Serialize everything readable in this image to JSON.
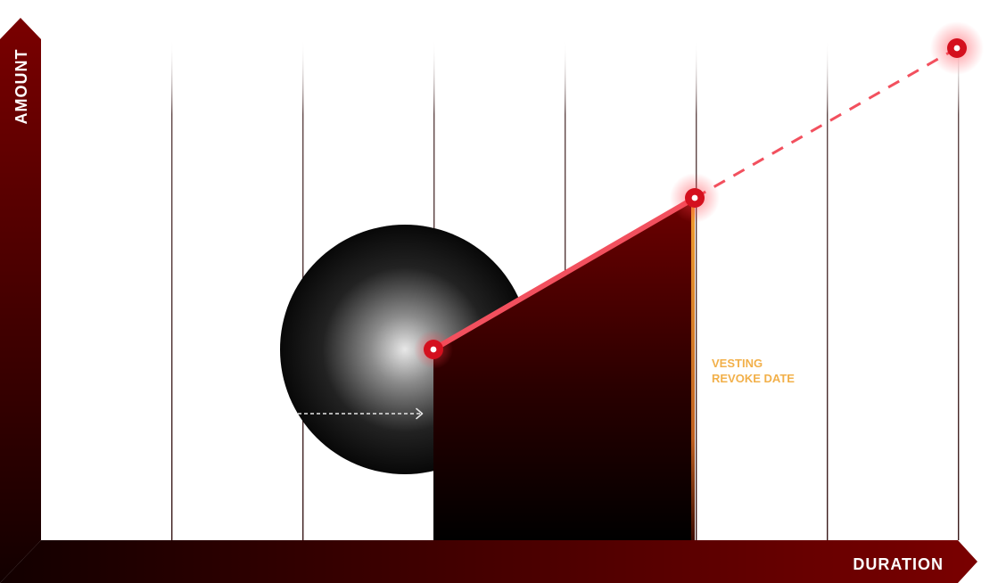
{
  "diagram": {
    "y_axis_label": "AMOUNT",
    "x_axis_label": "DURATION",
    "revoke_label_line1": "VESTING",
    "revoke_label_line2": "REVOKE DATE"
  },
  "colors": {
    "axis_dark": "#2a0000",
    "axis_red": "#7a0000",
    "vested_line": "#f2505e",
    "projection_line": "#f2505e",
    "point_fill": "#d4101e",
    "revoke_line": "#f0a030",
    "revoke_text": "#f2b04a",
    "grid_line": "#3a1a1a"
  },
  "icons": {
    "axis_arrows": "chevron-arrow-icon",
    "dashed_arrow": "arrow-right-icon"
  }
}
